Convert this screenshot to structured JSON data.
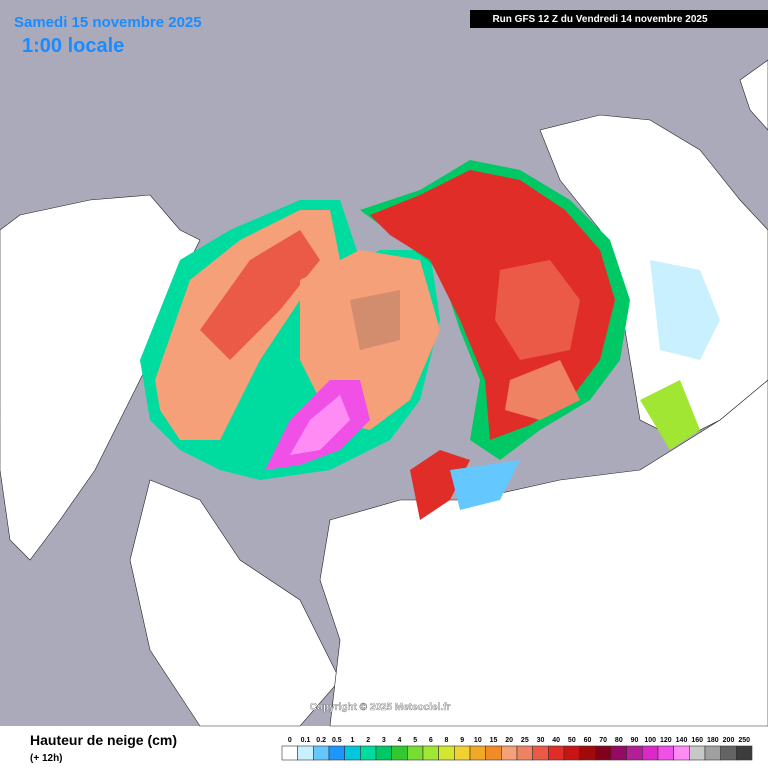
{
  "header": {
    "date": "Samedi 15 novembre 2025",
    "time": "1:00 locale",
    "run": "Run GFS 12 Z du Vendredi 14 novembre 2025"
  },
  "map": {
    "copyright": "Copyright © 2025 Meteociel.fr"
  },
  "legend": {
    "title": "Hauteur de neige (cm)",
    "subtitle": "(+ 12h)",
    "items": [
      {
        "label": "0",
        "color": "#ffffff"
      },
      {
        "label": "0.1",
        "color": "#c8f0ff"
      },
      {
        "label": "0.2",
        "color": "#64c8ff"
      },
      {
        "label": "0.5",
        "color": "#1e96ff"
      },
      {
        "label": "1",
        "color": "#00c8dc"
      },
      {
        "label": "2",
        "color": "#00dca0"
      },
      {
        "label": "3",
        "color": "#00c864"
      },
      {
        "label": "4",
        "color": "#32c832"
      },
      {
        "label": "5",
        "color": "#78dc32"
      },
      {
        "label": "6",
        "color": "#a0e632"
      },
      {
        "label": "8",
        "color": "#d2e632"
      },
      {
        "label": "9",
        "color": "#f0d232"
      },
      {
        "label": "10",
        "color": "#f0aa28"
      },
      {
        "label": "15",
        "color": "#f08c28"
      },
      {
        "label": "20",
        "color": "#f5a078"
      },
      {
        "label": "25",
        "color": "#f08264"
      },
      {
        "label": "30",
        "color": "#eb5a46"
      },
      {
        "label": "40",
        "color": "#e12d28"
      },
      {
        "label": "50",
        "color": "#c81414"
      },
      {
        "label": "60",
        "color": "#a00a0a"
      },
      {
        "label": "70",
        "color": "#82001e"
      },
      {
        "label": "80",
        "color": "#960a64"
      },
      {
        "label": "90",
        "color": "#b41e96"
      },
      {
        "label": "100",
        "color": "#dc28c8"
      },
      {
        "label": "120",
        "color": "#f050e6"
      },
      {
        "label": "140",
        "color": "#ff8cf5"
      },
      {
        "label": "160",
        "color": "#c8c8c8"
      },
      {
        "label": "180",
        "color": "#a0a0a0"
      },
      {
        "label": "200",
        "color": "#646464"
      },
      {
        "label": "250",
        "color": "#3c3c3c"
      }
    ]
  }
}
